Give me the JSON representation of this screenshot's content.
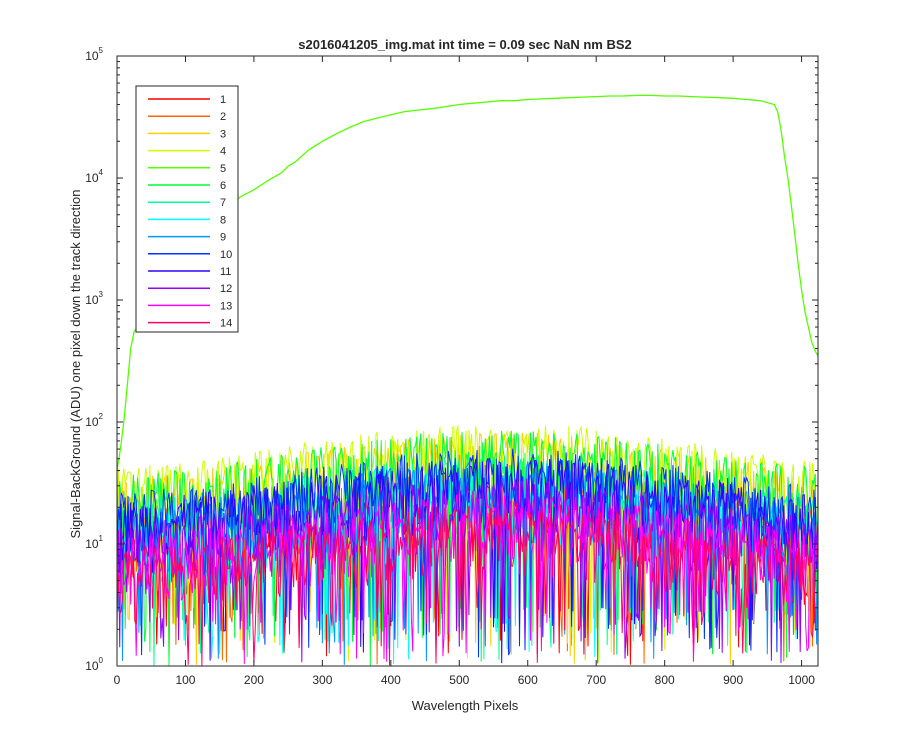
{
  "chart_data": {
    "type": "line",
    "title": "s2016041205_img.mat int time = 0.09 sec  NaN nm BS2",
    "xlabel": "Wavelength Pixels",
    "ylabel": "Signal-BackGround (ADU) one pixel down the track direction",
    "xlim": [
      0,
      1024
    ],
    "ylim": [
      1,
      100000
    ],
    "yscale": "log",
    "grid": false,
    "legend_position": "top-left",
    "x_ticks": [
      "0",
      "100",
      "200",
      "300",
      "400",
      "500",
      "600",
      "700",
      "800",
      "900",
      "1000"
    ],
    "y_tick_bases": [
      "10",
      "10",
      "10",
      "10",
      "10",
      "10"
    ],
    "y_tick_exponents": [
      "0",
      "1",
      "2",
      "3",
      "4",
      "5"
    ],
    "main_series": {
      "name": "5",
      "color": "#55ff00",
      "x": [
        0,
        5,
        10,
        15,
        20,
        25,
        30,
        40,
        60,
        80,
        100,
        120,
        140,
        160,
        180,
        200,
        220,
        240,
        250,
        260,
        280,
        300,
        320,
        340,
        360,
        380,
        400,
        420,
        440,
        460,
        480,
        500,
        520,
        540,
        560,
        580,
        600,
        620,
        640,
        660,
        680,
        700,
        720,
        740,
        760,
        780,
        800,
        820,
        840,
        860,
        880,
        900,
        920,
        940,
        960,
        965,
        970,
        975,
        980,
        985,
        990,
        995,
        1000,
        1005,
        1010,
        1015,
        1020,
        1024
      ],
      "y": [
        40,
        60,
        100,
        200,
        400,
        550,
        600,
        650,
        800,
        1200,
        1800,
        2800,
        4000,
        5500,
        7000,
        8000,
        9500,
        11000,
        12500,
        13500,
        17000,
        20000,
        23000,
        26000,
        29000,
        31000,
        33000,
        35000,
        36000,
        37000,
        38500,
        40000,
        41000,
        42000,
        43000,
        43000,
        44000,
        44500,
        45000,
        45500,
        46000,
        46500,
        47000,
        47000,
        47500,
        47500,
        47000,
        47000,
        46500,
        46000,
        45500,
        45000,
        44000,
        43000,
        40000,
        35000,
        25000,
        15000,
        10000,
        6000,
        3500,
        2000,
        1200,
        800,
        600,
        450,
        380,
        350
      ]
    },
    "series": [
      {
        "name": "1",
        "color": "#ff0000",
        "base": 12
      },
      {
        "name": "2",
        "color": "#ff6600",
        "base": 20
      },
      {
        "name": "3",
        "color": "#ffcc00",
        "base": 38
      },
      {
        "name": "4",
        "color": "#ccff00",
        "base": 45
      },
      {
        "name": "5",
        "color": "#55ff00",
        "base": 70
      },
      {
        "name": "6",
        "color": "#00ff33",
        "base": 40
      },
      {
        "name": "7",
        "color": "#00ff99",
        "base": 25
      },
      {
        "name": "8",
        "color": "#00ffff",
        "base": 18
      },
      {
        "name": "9",
        "color": "#0099ff",
        "base": 22
      },
      {
        "name": "10",
        "color": "#0033ff",
        "base": 28
      },
      {
        "name": "11",
        "color": "#3300ff",
        "base": 24
      },
      {
        "name": "12",
        "color": "#9900ff",
        "base": 16
      },
      {
        "name": "13",
        "color": "#ff00ff",
        "base": 12
      },
      {
        "name": "14",
        "color": "#ff0066",
        "base": 10
      }
    ]
  }
}
